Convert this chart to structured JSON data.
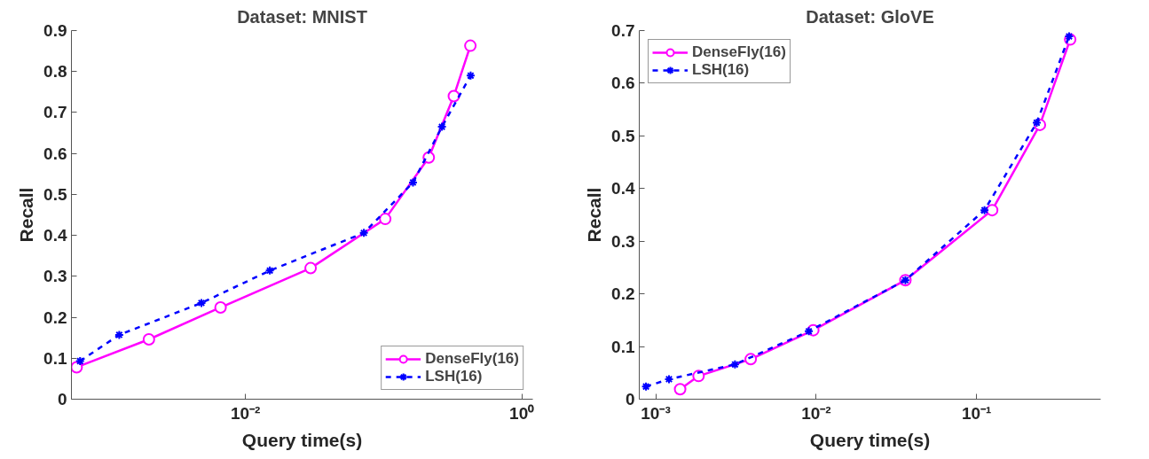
{
  "chart_data": [
    {
      "type": "line",
      "title": "Dataset: MNIST",
      "xlabel": "Query time(s)",
      "ylabel": "Recall",
      "log": "x",
      "xlim": [
        0.00055,
        1.2
      ],
      "ylim": [
        0,
        0.9
      ],
      "xticks": [
        {
          "value": 0.01,
          "label": "10⁻²"
        },
        {
          "value": 1,
          "label": "10⁰"
        }
      ],
      "yticks": [
        0,
        0.1,
        0.2,
        0.3,
        0.4,
        0.5,
        0.6,
        0.7,
        0.8,
        0.9
      ],
      "grid": false,
      "legend": "bottom right",
      "series": [
        {
          "name": "DenseFly(16)",
          "color": "#ff00ff",
          "marker": "circle",
          "line_style": "solid",
          "x": [
            0.0006,
            0.002,
            0.0066,
            0.0296,
            0.1026,
            0.212,
            0.322,
            0.424
          ],
          "values": [
            0.078,
            0.146,
            0.224,
            0.32,
            0.44,
            0.59,
            0.74,
            0.863
          ]
        },
        {
          "name": "LSH(16)",
          "color": "#0000ff",
          "marker": "cross",
          "line_style": "dashed",
          "x": [
            0.000635,
            0.00122,
            0.0048,
            0.015,
            0.0719,
            0.163,
            0.264,
            0.426
          ],
          "values": [
            0.093,
            0.157,
            0.235,
            0.314,
            0.406,
            0.529,
            0.665,
            0.79
          ]
        }
      ]
    },
    {
      "type": "line",
      "title": "Dataset: GloVE",
      "xlabel": "Query time(s)",
      "ylabel": "Recall",
      "log": "x",
      "xlim": [
        0.00079,
        0.593
      ],
      "ylim": [
        0,
        0.7
      ],
      "xticks": [
        {
          "value": 0.001,
          "label": "10⁻³"
        },
        {
          "value": 0.01,
          "label": "10⁻²"
        },
        {
          "value": 0.1,
          "label": "10⁻¹"
        }
      ],
      "yticks": [
        0,
        0.1,
        0.2,
        0.3,
        0.4,
        0.5,
        0.6,
        0.7
      ],
      "grid": false,
      "legend": "top left",
      "series": [
        {
          "name": "DenseFly(16)",
          "color": "#ff00ff",
          "marker": "circle",
          "line_style": "solid",
          "x": [
            0.00142,
            0.00185,
            0.00391,
            0.0096,
            0.036,
            0.125,
            0.248,
            0.383
          ],
          "values": [
            0.019,
            0.044,
            0.076,
            0.131,
            0.226,
            0.359,
            0.521,
            0.683
          ]
        },
        {
          "name": "LSH(16)",
          "color": "#0000ff",
          "marker": "cross",
          "line_style": "dashed",
          "x": [
            0.00087,
            0.00121,
            0.00312,
            0.009,
            0.036,
            0.112,
            0.237,
            0.377
          ],
          "values": [
            0.024,
            0.038,
            0.066,
            0.129,
            0.226,
            0.359,
            0.525,
            0.689
          ]
        }
      ]
    }
  ]
}
